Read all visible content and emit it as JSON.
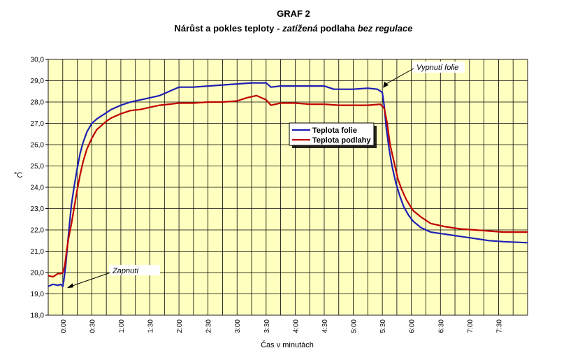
{
  "chart_data": {
    "type": "line",
    "title": "GRAF 2",
    "subtitle_parts": [
      {
        "text": "Nárůst a pokles teploty - ",
        "italic": false
      },
      {
        "text": "zatížená",
        "italic": true
      },
      {
        "text": " podlaha ",
        "italic": false
      },
      {
        "text": "bez",
        "italic": true
      },
      {
        "text": " ",
        "italic": false
      },
      {
        "text": "regulace",
        "italic": true
      }
    ],
    "xlabel": "Čas v minutách",
    "ylabel": "°C",
    "xlim": [
      -15,
      480
    ],
    "ylim": [
      18,
      30
    ],
    "y_ticks": [
      "18,0",
      "19,0",
      "20,0",
      "21,0",
      "22,0",
      "23,0",
      "24,0",
      "25,0",
      "26,0",
      "27,0",
      "28,0",
      "29,0",
      "30,0"
    ],
    "x_ticks": [
      {
        "t": 0,
        "label": "0:00"
      },
      {
        "t": 30,
        "label": "0:30"
      },
      {
        "t": 60,
        "label": "1:00"
      },
      {
        "t": 90,
        "label": "1:30"
      },
      {
        "t": 120,
        "label": "2:00"
      },
      {
        "t": 150,
        "label": "2:30"
      },
      {
        "t": 180,
        "label": "3:00"
      },
      {
        "t": 210,
        "label": "3:30"
      },
      {
        "t": 240,
        "label": "4:00"
      },
      {
        "t": 270,
        "label": "4:30"
      },
      {
        "t": 300,
        "label": "5:00"
      },
      {
        "t": 330,
        "label": "5:30"
      },
      {
        "t": 360,
        "label": "6:00"
      },
      {
        "t": 390,
        "label": "6:30"
      },
      {
        "t": 420,
        "label": "7:00"
      },
      {
        "t": 450,
        "label": "7:30"
      }
    ],
    "grid": true,
    "legend_position": "center-right",
    "series": [
      {
        "name": "Teplota folie",
        "color": "#1f1fb4",
        "points": [
          [
            -15,
            19.35
          ],
          [
            -10,
            19.45
          ],
          [
            -5,
            19.4
          ],
          [
            -2,
            19.45
          ],
          [
            0,
            19.35
          ],
          [
            1,
            19.6
          ],
          [
            3,
            20.3
          ],
          [
            5,
            21.3
          ],
          [
            7,
            22.3
          ],
          [
            9,
            23.2
          ],
          [
            12,
            24.1
          ],
          [
            15,
            24.9
          ],
          [
            18,
            25.6
          ],
          [
            21,
            26.1
          ],
          [
            25,
            26.6
          ],
          [
            30,
            27.0
          ],
          [
            35,
            27.2
          ],
          [
            40,
            27.35
          ],
          [
            45,
            27.5
          ],
          [
            50,
            27.65
          ],
          [
            55,
            27.75
          ],
          [
            60,
            27.85
          ],
          [
            70,
            28.0
          ],
          [
            80,
            28.1
          ],
          [
            90,
            28.2
          ],
          [
            100,
            28.3
          ],
          [
            110,
            28.5
          ],
          [
            120,
            28.7
          ],
          [
            135,
            28.7
          ],
          [
            150,
            28.75
          ],
          [
            165,
            28.8
          ],
          [
            180,
            28.85
          ],
          [
            195,
            28.9
          ],
          [
            210,
            28.9
          ],
          [
            215,
            28.7
          ],
          [
            225,
            28.75
          ],
          [
            240,
            28.75
          ],
          [
            255,
            28.75
          ],
          [
            270,
            28.75
          ],
          [
            280,
            28.6
          ],
          [
            300,
            28.6
          ],
          [
            315,
            28.65
          ],
          [
            325,
            28.6
          ],
          [
            330,
            28.45
          ],
          [
            332,
            27.8
          ],
          [
            334,
            26.8
          ],
          [
            337,
            25.8
          ],
          [
            340,
            25.0
          ],
          [
            344,
            24.2
          ],
          [
            348,
            23.6
          ],
          [
            352,
            23.1
          ],
          [
            357,
            22.7
          ],
          [
            362,
            22.4
          ],
          [
            370,
            22.1
          ],
          [
            380,
            21.9
          ],
          [
            395,
            21.8
          ],
          [
            410,
            21.7
          ],
          [
            425,
            21.6
          ],
          [
            440,
            21.5
          ],
          [
            455,
            21.45
          ],
          [
            480,
            21.4
          ]
        ]
      },
      {
        "name": "Teplota podlahy",
        "color": "#c00000",
        "points": [
          [
            -15,
            19.85
          ],
          [
            -10,
            19.8
          ],
          [
            -5,
            19.95
          ],
          [
            -2,
            19.95
          ],
          [
            0,
            20.0
          ],
          [
            2,
            20.3
          ],
          [
            4,
            21.0
          ],
          [
            6,
            21.6
          ],
          [
            9,
            22.3
          ],
          [
            12,
            23.1
          ],
          [
            15,
            23.9
          ],
          [
            18,
            24.6
          ],
          [
            21,
            25.2
          ],
          [
            25,
            25.8
          ],
          [
            30,
            26.3
          ],
          [
            35,
            26.7
          ],
          [
            40,
            26.9
          ],
          [
            45,
            27.1
          ],
          [
            50,
            27.25
          ],
          [
            55,
            27.35
          ],
          [
            60,
            27.45
          ],
          [
            70,
            27.6
          ],
          [
            80,
            27.65
          ],
          [
            90,
            27.75
          ],
          [
            100,
            27.85
          ],
          [
            110,
            27.9
          ],
          [
            120,
            27.95
          ],
          [
            135,
            27.95
          ],
          [
            150,
            28.0
          ],
          [
            165,
            28.0
          ],
          [
            180,
            28.05
          ],
          [
            190,
            28.2
          ],
          [
            200,
            28.3
          ],
          [
            210,
            28.1
          ],
          [
            215,
            27.85
          ],
          [
            225,
            27.95
          ],
          [
            240,
            27.95
          ],
          [
            255,
            27.9
          ],
          [
            270,
            27.9
          ],
          [
            285,
            27.85
          ],
          [
            300,
            27.85
          ],
          [
            315,
            27.85
          ],
          [
            328,
            27.9
          ],
          [
            332,
            27.7
          ],
          [
            335,
            27.0
          ],
          [
            338,
            26.0
          ],
          [
            342,
            25.2
          ],
          [
            346,
            24.4
          ],
          [
            350,
            23.9
          ],
          [
            355,
            23.4
          ],
          [
            362,
            22.9
          ],
          [
            370,
            22.6
          ],
          [
            380,
            22.3
          ],
          [
            395,
            22.15
          ],
          [
            410,
            22.05
          ],
          [
            425,
            22.0
          ],
          [
            440,
            21.95
          ],
          [
            455,
            21.9
          ],
          [
            480,
            21.9
          ]
        ]
      }
    ],
    "annotations": [
      {
        "text": "Zapnutí",
        "t": 0,
        "y": 19.4
      },
      {
        "text": "Vypnutí folie",
        "t": 330,
        "y": 28.6
      }
    ]
  }
}
